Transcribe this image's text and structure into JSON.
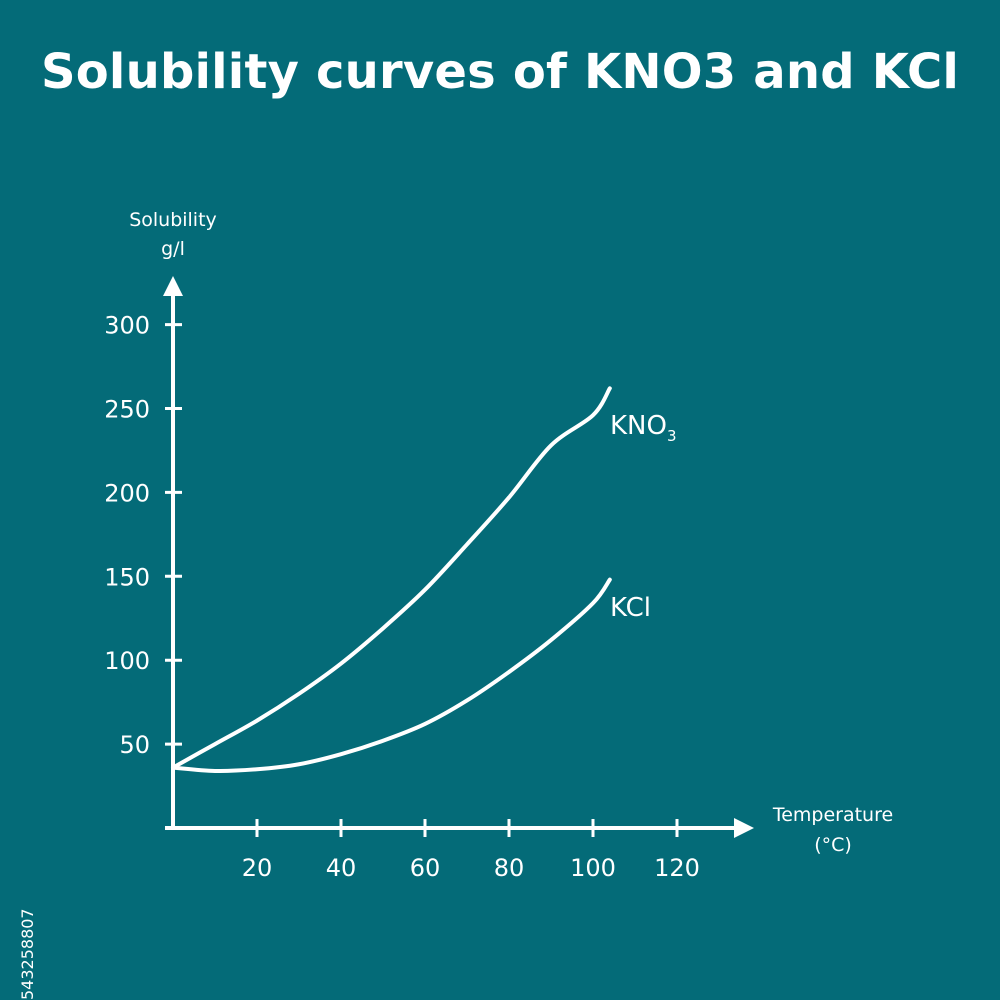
{
  "chart_data": {
    "type": "line",
    "title": "Solubility curves of KNO3 and KCl",
    "ylabel_line1": "Solubility",
    "ylabel_line2": "g/l",
    "xlabel_line1": "Temperature",
    "xlabel_line2": "(°C)",
    "x_ticks": [
      20,
      40,
      60,
      80,
      100,
      120
    ],
    "y_ticks": [
      50,
      100,
      150,
      200,
      250,
      300
    ],
    "xlim": [
      0,
      138
    ],
    "ylim": [
      0,
      325
    ],
    "grid": false,
    "legend": "none",
    "series": [
      {
        "name": "KNO3",
        "label_main": "KNO",
        "label_sub": "3",
        "x": [
          0,
          10,
          20,
          30,
          40,
          50,
          60,
          70,
          80,
          90,
          100,
          104
        ],
        "y": [
          36,
          50,
          64,
          80,
          98,
          119,
          142,
          169,
          197,
          228,
          246,
          262
        ]
      },
      {
        "name": "KCl",
        "label_main": "KCl",
        "label_sub": "",
        "x": [
          0,
          10,
          20,
          30,
          40,
          50,
          60,
          70,
          80,
          90,
          100,
          104
        ],
        "y": [
          36,
          34,
          35,
          38,
          44,
          52,
          62,
          76,
          93,
          112,
          134,
          148
        ]
      }
    ]
  },
  "watermark_id": "543258807",
  "colors": {
    "background": "#046b78",
    "foreground": "#ffffff"
  }
}
